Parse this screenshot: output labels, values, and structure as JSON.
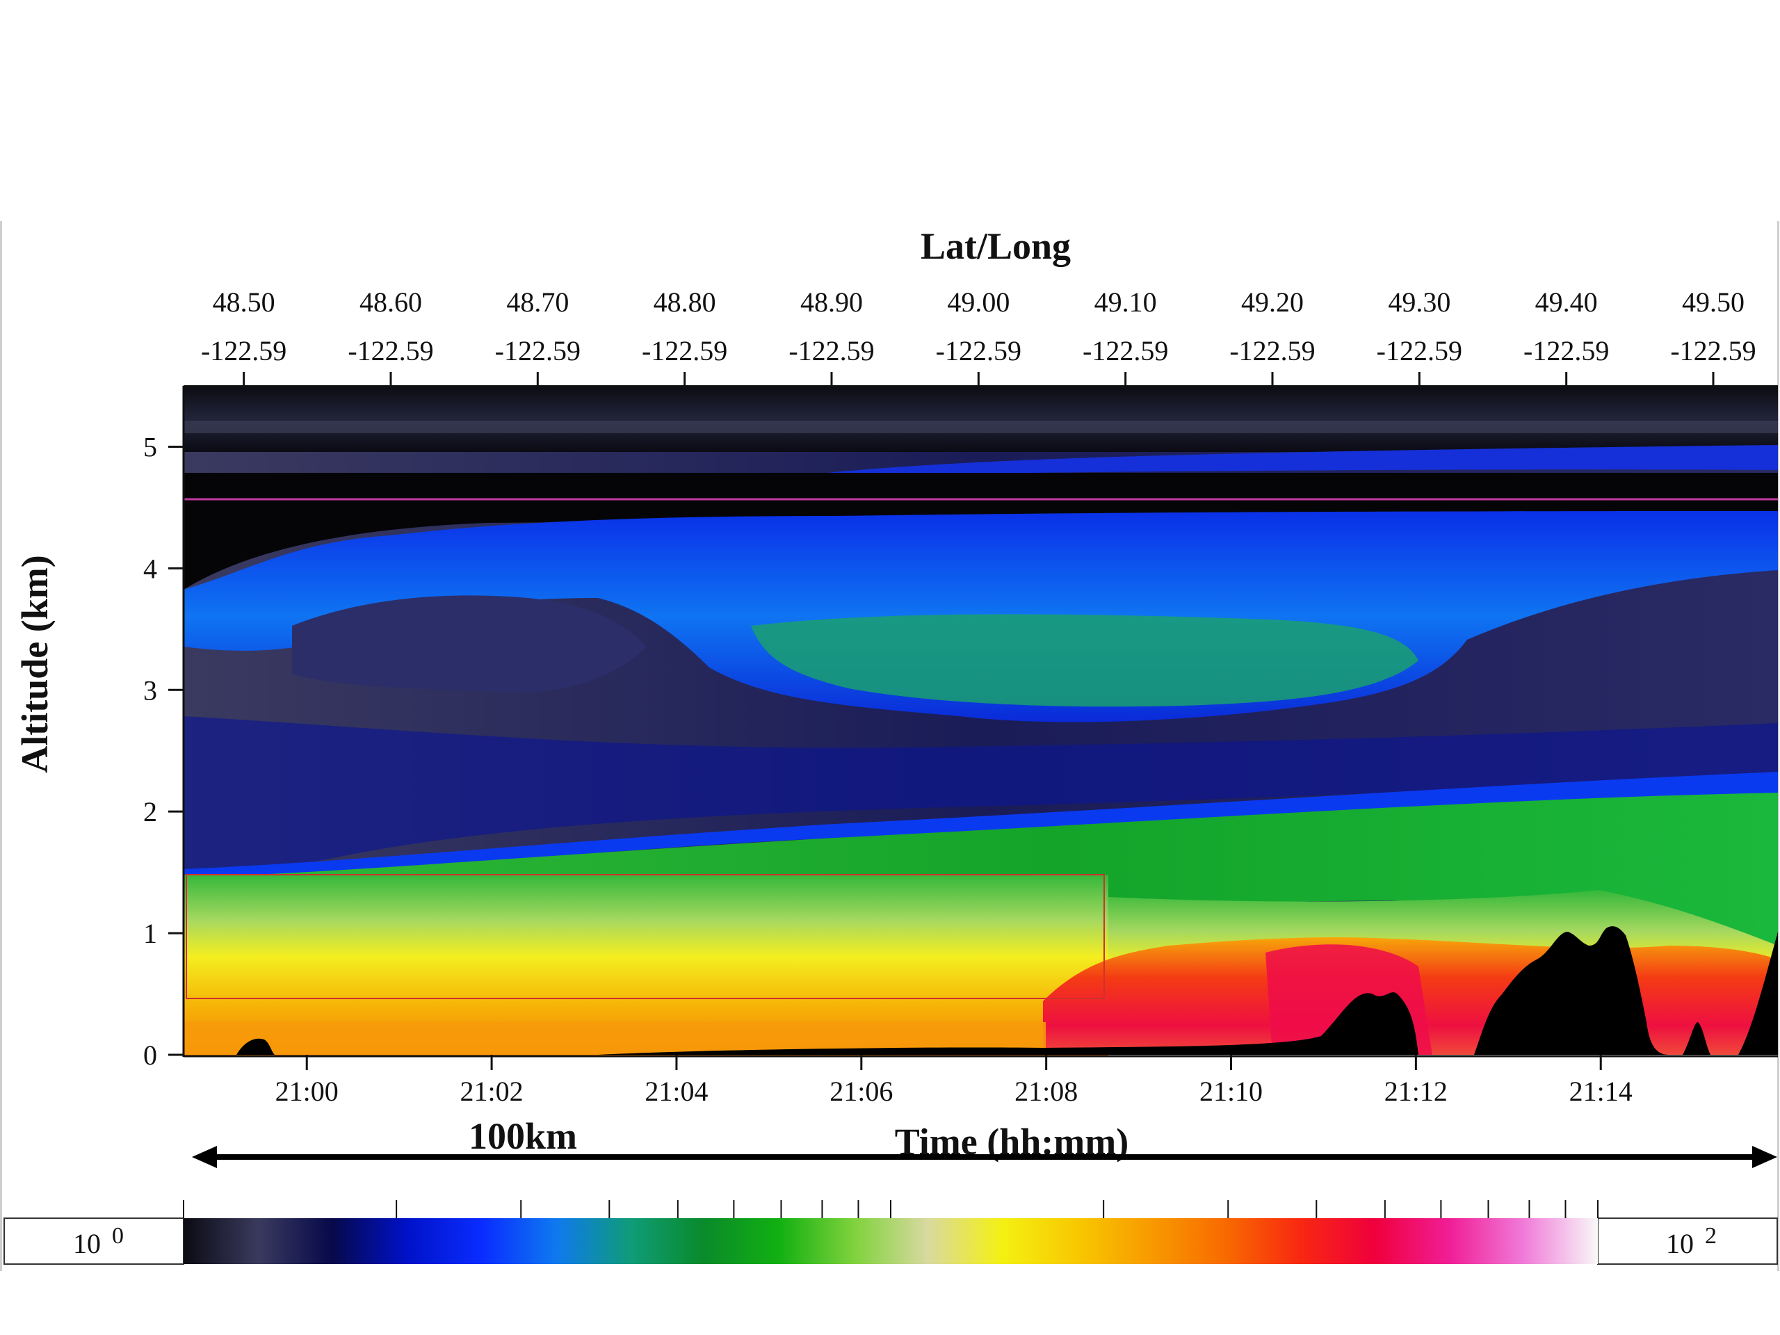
{
  "chart_data": {
    "type": "heatmap",
    "title": "",
    "top_axis_label": "Lat/Long",
    "latitude_ticks": [
      "48.50",
      "48.60",
      "48.70",
      "48.80",
      "48.90",
      "49.00",
      "49.10",
      "49.20",
      "49.30",
      "49.40",
      "49.50"
    ],
    "longitude_ticks": [
      "-122.59",
      "-122.59",
      "-122.59",
      "-122.59",
      "-122.59",
      "-122.59",
      "-122.59",
      "-122.59",
      "-122.59",
      "-122.59",
      "-122.59"
    ],
    "latitude_values": [
      48.5,
      48.6,
      48.7,
      48.8,
      48.9,
      49.0,
      49.1,
      49.2,
      49.3,
      49.4,
      49.5
    ],
    "xlabel": "Time (hh:mm)",
    "x_ticks": [
      "21:00",
      "21:02",
      "21:04",
      "21:06",
      "21:08",
      "21:10",
      "21:12",
      "21:14"
    ],
    "x_tick_minutes": [
      0,
      2,
      4,
      6,
      8,
      10,
      12,
      14
    ],
    "x_start": "20:58:40",
    "x_end": "21:15:55",
    "ylabel": "Altitude (km)",
    "y_ticks": [
      "0",
      "1",
      "2",
      "3",
      "4",
      "5"
    ],
    "y_tick_values": [
      0,
      1,
      2,
      3,
      4,
      5
    ],
    "ylim": [
      0,
      5.5
    ],
    "distance_label": "100km",
    "colorbar": {
      "min_label": "10",
      "min_exponent": "0",
      "max_label": "10",
      "max_exponent": "2",
      "scale": "log",
      "range": [
        1,
        100
      ],
      "colors": [
        "#0b0b14",
        "#3a3a5e",
        "#07094a",
        "#0012c8",
        "#0a2cff",
        "#0f78f0",
        "#0f9c78",
        "#0a8a2a",
        "#12b012",
        "#7fd23c",
        "#d9d9a0",
        "#f4f012",
        "#f8c800",
        "#f89a00",
        "#f86a00",
        "#f82810",
        "#f0003c",
        "#f01e96",
        "#f07ad8",
        "#f8f8f8"
      ]
    },
    "colors": {
      "sky_top": "#101018",
      "background_layer": "#1c1f5c",
      "dense_layer": "#0a14b8",
      "bright_layer": "#0e6cf0",
      "green_layer": "#1fa82a",
      "boundary_layer": "#f2e21a",
      "surface_layer": "#f59a0c",
      "hot_layer": "#ee1838",
      "terrain": "#000000",
      "highlight_line": "#c03ca0",
      "box": "#d03030",
      "arrow": "#000000"
    }
  }
}
